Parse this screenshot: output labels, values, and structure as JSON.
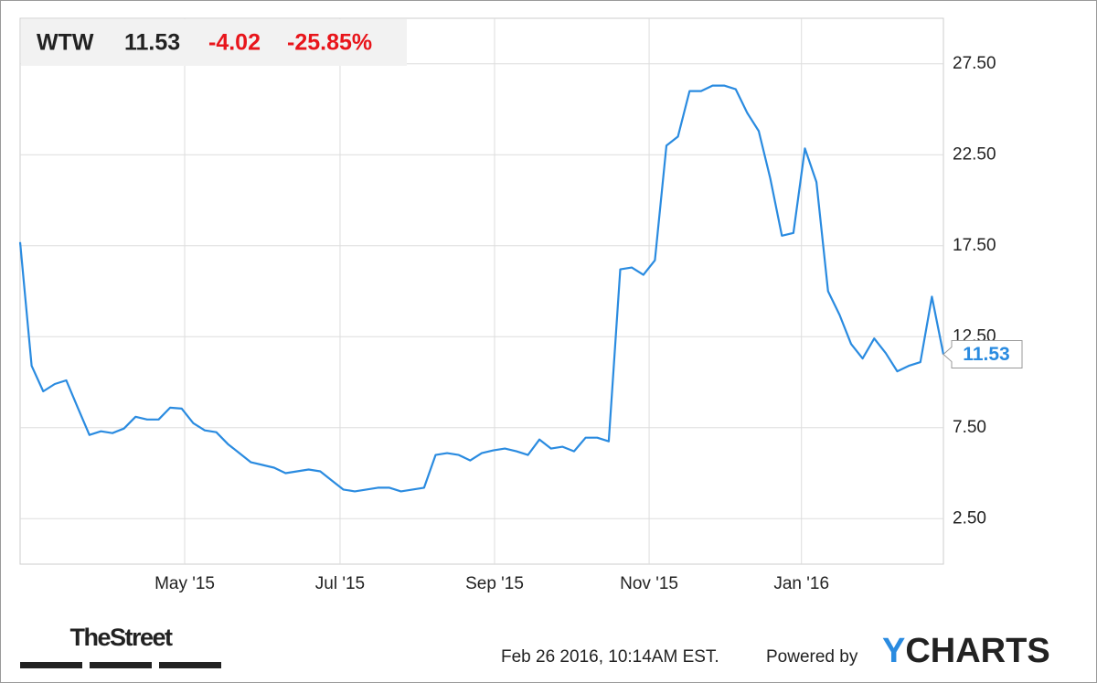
{
  "chart_data": {
    "type": "line",
    "header": {
      "ticker": "WTW",
      "price": "11.53",
      "change": "-4.02",
      "change_percent": "-25.85%"
    },
    "footer": {
      "brand": "TheStreet",
      "timestamp": "Feb 26 2016, 10:14AM EST.",
      "powered_by": "Powered by",
      "provider": "YCHARTS"
    },
    "series": [
      {
        "name": "WTW",
        "color": "#2a8be0",
        "values": [
          17.7,
          10.9,
          9.5,
          9.9,
          10.1,
          8.6,
          7.1,
          7.3,
          7.2,
          7.45,
          8.1,
          7.95,
          7.95,
          8.6,
          8.55,
          7.75,
          7.35,
          7.25,
          6.6,
          6.1,
          5.6,
          5.45,
          5.3,
          5.0,
          5.1,
          5.2,
          5.1,
          4.6,
          4.1,
          4.0,
          4.1,
          4.2,
          4.2,
          4.0,
          4.1,
          4.2,
          6.0,
          6.1,
          6.0,
          5.7,
          6.1,
          6.25,
          6.35,
          6.2,
          6.0,
          6.85,
          6.35,
          6.45,
          6.2,
          6.95,
          6.95,
          6.75,
          16.2,
          16.3,
          15.9,
          16.7,
          23.0,
          23.5,
          26.0,
          26.0,
          26.3,
          26.3,
          26.1,
          24.8,
          23.8,
          21.2,
          18.05,
          18.2,
          22.85,
          21.0,
          15.0,
          13.7,
          12.1,
          11.3,
          12.4,
          11.6,
          10.6,
          10.9,
          11.1,
          14.7,
          11.53
        ]
      }
    ],
    "xticks": [
      {
        "value": 14.26,
        "label": "May '15"
      },
      {
        "value": 27.72,
        "label": "Jul '15"
      },
      {
        "value": 41.11,
        "label": "Sep '15"
      },
      {
        "value": 54.5,
        "label": "Nov '15"
      },
      {
        "value": 67.7,
        "label": "Jan '16"
      }
    ],
    "ylim": [
      0,
      30
    ],
    "yticks": [
      {
        "value": 2.5,
        "label": "2.50"
      },
      {
        "value": 7.5,
        "label": "7.50"
      },
      {
        "value": 12.5,
        "label": "12.50"
      },
      {
        "value": 17.5,
        "label": "17.50"
      },
      {
        "value": 22.5,
        "label": "22.50"
      },
      {
        "value": 27.5,
        "label": "27.50"
      }
    ],
    "grid": true
  }
}
